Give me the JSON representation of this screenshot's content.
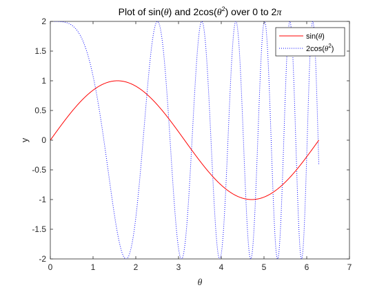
{
  "chart_data": {
    "type": "line",
    "title_parts": [
      "Plot of sin(",
      "θ",
      ") and 2cos(",
      "θ",
      "2",
      ") over 0 to 2",
      "π"
    ],
    "xlabel": "θ",
    "ylabel": "y",
    "xlim": [
      0,
      7
    ],
    "ylim": [
      -2,
      2
    ],
    "xticks": [
      0,
      1,
      2,
      3,
      4,
      5,
      6,
      7
    ],
    "yticks": [
      -2,
      -1.5,
      -1,
      -0.5,
      0,
      0.5,
      1,
      1.5,
      2
    ],
    "xtick_labels": [
      "0",
      "1",
      "2",
      "3",
      "4",
      "5",
      "6",
      "7"
    ],
    "ytick_labels": [
      "-2",
      "-1.5",
      "-1",
      "-0.5",
      "0",
      "0.5",
      "1",
      "1.5",
      "2"
    ],
    "grid": false,
    "legend": {
      "location": "top-right",
      "entries": [
        {
          "series": "sin",
          "parts": [
            "sin(",
            "θ",
            ")"
          ]
        },
        {
          "series": "cos2",
          "parts": [
            "2cos(",
            "θ",
            "2",
            ")"
          ]
        }
      ]
    },
    "series": [
      {
        "id": "sin",
        "function": "sin(x)",
        "domain": [
          0,
          6.2832
        ],
        "color": "#ff0000",
        "style": "solid"
      },
      {
        "id": "cos2",
        "function": "2cos(x^2)",
        "domain": [
          0,
          6.2832
        ],
        "color": "#0000ff",
        "style": "dotted"
      }
    ]
  }
}
